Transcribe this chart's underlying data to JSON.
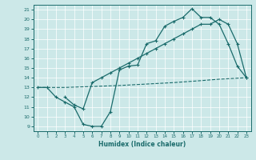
{
  "xlabel": "Humidex (Indice chaleur)",
  "xlim": [
    -0.5,
    23.5
  ],
  "ylim": [
    8.5,
    21.5
  ],
  "yticks": [
    9,
    10,
    11,
    12,
    13,
    14,
    15,
    16,
    17,
    18,
    19,
    20,
    21
  ],
  "xticks": [
    0,
    1,
    2,
    3,
    4,
    5,
    6,
    7,
    8,
    9,
    10,
    11,
    12,
    13,
    14,
    15,
    16,
    17,
    18,
    19,
    20,
    21,
    22,
    23
  ],
  "bg_color": "#cce8e8",
  "line_color": "#1a6b6b",
  "line1_x": [
    0,
    1,
    2,
    3,
    4,
    5,
    6,
    7,
    8,
    9,
    10,
    11,
    12,
    13,
    14,
    15,
    16,
    17,
    18,
    19,
    20,
    21,
    22,
    23
  ],
  "line1_y": [
    13,
    13,
    12,
    11.5,
    11,
    9.2,
    9.0,
    9.0,
    10.5,
    14.8,
    15.2,
    15.3,
    17.5,
    17.8,
    19.3,
    19.8,
    20.2,
    21.1,
    20.2,
    20.2,
    19.5,
    17.5,
    15.2,
    14.0
  ],
  "line2_x": [
    0,
    1,
    2,
    3,
    6,
    9,
    12,
    15,
    18,
    20,
    21,
    22,
    23
  ],
  "line2_y": [
    13.0,
    13.0,
    13.0,
    13.0,
    13.1,
    13.2,
    13.35,
    13.5,
    13.7,
    13.85,
    13.9,
    13.95,
    14.0
  ],
  "line3_x": [
    3,
    4,
    5,
    6,
    7,
    8,
    9,
    10,
    11,
    12,
    13,
    14,
    15,
    16,
    17,
    18,
    19,
    20,
    21,
    22,
    23
  ],
  "line3_y": [
    12.0,
    11.2,
    10.8,
    13.5,
    14.0,
    14.5,
    15.0,
    15.5,
    16.0,
    16.5,
    17.0,
    17.5,
    18.0,
    18.5,
    19.0,
    19.5,
    19.5,
    20.0,
    19.5,
    17.5,
    14.0
  ]
}
